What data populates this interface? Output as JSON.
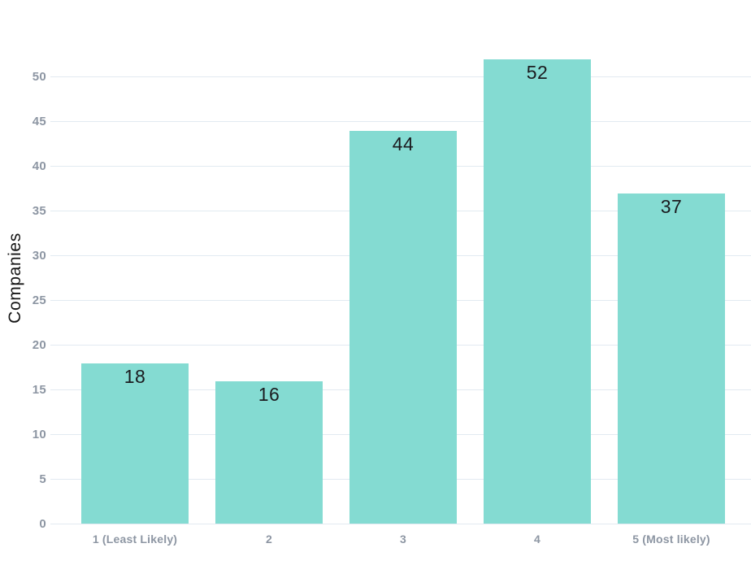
{
  "chart_data": {
    "type": "bar",
    "categories": [
      "1 (Least Likely)",
      "2",
      "3",
      "4",
      "5 (Most likely)"
    ],
    "values": [
      18,
      16,
      44,
      52,
      37
    ],
    "xlabel": "",
    "ylabel": "Companies",
    "yticks": [
      0,
      5,
      10,
      15,
      20,
      25,
      30,
      35,
      40,
      45,
      50
    ],
    "ylim": [
      0,
      55
    ],
    "grid": "horizontal",
    "legend": "none",
    "value_labels": "inside-top",
    "colors": {
      "bar": "#84dbd2",
      "gridline": "#e2eaf1",
      "tick_label": "#8d96a3",
      "value_label": "#1b1b1f",
      "axis_title": "#141414",
      "background": "#ffffff"
    }
  }
}
